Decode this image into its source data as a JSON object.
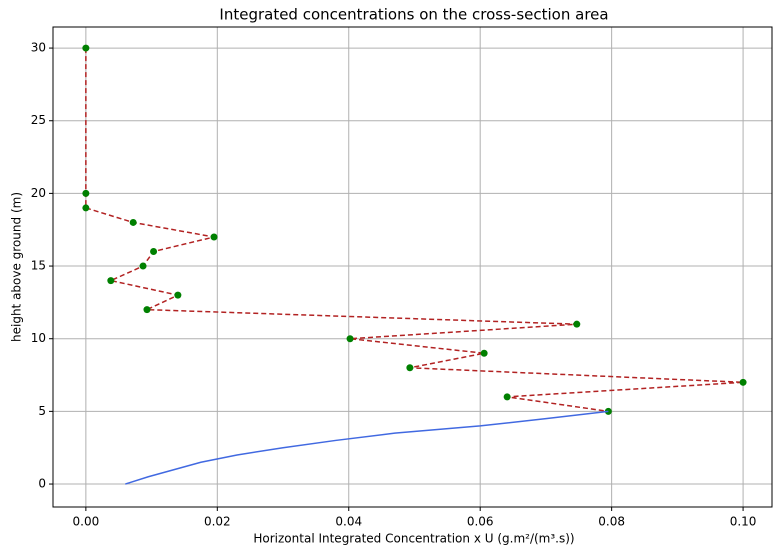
{
  "chart_data": {
    "type": "line",
    "title": "Integrated concentrations on the cross-section area",
    "xlabel": "Horizontal Integrated Concentration x U (g.m²/(m³.s))",
    "ylabel": "height above ground (m)",
    "xlim": [
      -0.005,
      0.1044
    ],
    "ylim": [
      -1.58,
      31.45
    ],
    "xticks": [
      {
        "value": 0,
        "label": "0.00"
      },
      {
        "value": 0.02,
        "label": "0.02"
      },
      {
        "value": 0.04,
        "label": "0.04"
      },
      {
        "value": 0.06,
        "label": "0.06"
      },
      {
        "value": 0.08,
        "label": "0.08"
      },
      {
        "value": 0.1,
        "label": "0.10"
      }
    ],
    "yticks": [
      0,
      5,
      10,
      15,
      20,
      25,
      30
    ],
    "grid": true,
    "series": [
      {
        "color": "#b22222",
        "line_style": "dashed",
        "marker_color": "#008000",
        "x": [
          0,
          0,
          0,
          0.0072,
          0.0195,
          0.0103,
          0.0087,
          0.0038,
          0.014,
          0.0093,
          0.0747,
          0.0402,
          0.0606,
          0.0493,
          0.1,
          0.0641,
          0.0795
        ],
        "values": [
          30,
          20,
          19,
          18,
          17,
          16,
          15,
          14,
          13,
          12,
          11,
          10,
          9,
          8,
          7,
          6,
          5
        ]
      },
      {
        "color": "#4169e1",
        "line_style": "solid",
        "x": [
          0.006,
          0.0095,
          0.0135,
          0.0175,
          0.023,
          0.03,
          0.038,
          0.047,
          0.06,
          0.07,
          0.0795
        ],
        "values": [
          0,
          0.5,
          1,
          1.5,
          2,
          2.5,
          3,
          3.5,
          4,
          4.5,
          5
        ]
      }
    ]
  }
}
